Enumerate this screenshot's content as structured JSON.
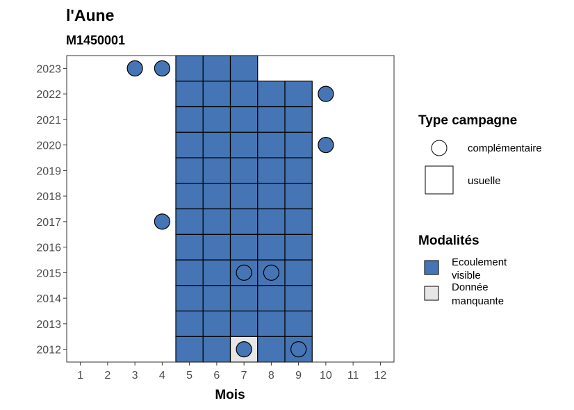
{
  "chart_data": {
    "type": "heatmap",
    "title": "l'Aune",
    "subtitle": "M1450001",
    "xlabel": "Mois",
    "ylabel": "",
    "x_ticks": [
      1,
      2,
      3,
      4,
      5,
      6,
      7,
      8,
      9,
      10,
      11,
      12
    ],
    "y_ticks": [
      2012,
      2013,
      2014,
      2015,
      2016,
      2017,
      2018,
      2019,
      2020,
      2021,
      2022,
      2023
    ],
    "xlim": [
      0.5,
      12.5
    ],
    "ylim": [
      2011.5,
      2023.5
    ],
    "grid": false,
    "colors": {
      "Ecoulement visible": "#4575b4",
      "Donnée manquante": "#e6e6e6"
    },
    "legends": {
      "type_campagne": {
        "title": "Type campagne",
        "items": [
          {
            "label": "complémentaire",
            "shape": "circle"
          },
          {
            "label": "usuelle",
            "shape": "square"
          }
        ]
      },
      "modalites": {
        "title": "Modalités",
        "items": [
          {
            "label_lines": [
              "Ecoulement",
              "visible"
            ],
            "value": "Ecoulement visible"
          },
          {
            "label_lines": [
              "Donnée",
              "manquante"
            ],
            "value": "Donnée manquante"
          }
        ]
      }
    },
    "usuelle": [
      {
        "year": 2012,
        "months": [
          5,
          6,
          7,
          8,
          9
        ],
        "modalites": [
          "Ecoulement visible",
          "Ecoulement visible",
          "Donnée manquante",
          "Ecoulement visible",
          "Ecoulement visible"
        ]
      },
      {
        "year": 2013,
        "months": [
          5,
          6,
          7,
          8,
          9
        ],
        "modalites": [
          "Ecoulement visible",
          "Ecoulement visible",
          "Ecoulement visible",
          "Ecoulement visible",
          "Ecoulement visible"
        ]
      },
      {
        "year": 2014,
        "months": [
          5,
          6,
          7,
          8,
          9
        ],
        "modalites": [
          "Ecoulement visible",
          "Ecoulement visible",
          "Ecoulement visible",
          "Ecoulement visible",
          "Ecoulement visible"
        ]
      },
      {
        "year": 2015,
        "months": [
          5,
          6,
          7,
          8,
          9
        ],
        "modalites": [
          "Ecoulement visible",
          "Ecoulement visible",
          "Ecoulement visible",
          "Ecoulement visible",
          "Ecoulement visible"
        ]
      },
      {
        "year": 2016,
        "months": [
          5,
          6,
          7,
          8,
          9
        ],
        "modalites": [
          "Ecoulement visible",
          "Ecoulement visible",
          "Ecoulement visible",
          "Ecoulement visible",
          "Ecoulement visible"
        ]
      },
      {
        "year": 2017,
        "months": [
          5,
          6,
          7,
          8,
          9
        ],
        "modalites": [
          "Ecoulement visible",
          "Ecoulement visible",
          "Ecoulement visible",
          "Ecoulement visible",
          "Ecoulement visible"
        ]
      },
      {
        "year": 2018,
        "months": [
          5,
          6,
          7,
          8,
          9
        ],
        "modalites": [
          "Ecoulement visible",
          "Ecoulement visible",
          "Ecoulement visible",
          "Ecoulement visible",
          "Ecoulement visible"
        ]
      },
      {
        "year": 2019,
        "months": [
          5,
          6,
          7,
          8,
          9
        ],
        "modalites": [
          "Ecoulement visible",
          "Ecoulement visible",
          "Ecoulement visible",
          "Ecoulement visible",
          "Ecoulement visible"
        ]
      },
      {
        "year": 2020,
        "months": [
          5,
          6,
          7,
          8,
          9
        ],
        "modalites": [
          "Ecoulement visible",
          "Ecoulement visible",
          "Ecoulement visible",
          "Ecoulement visible",
          "Ecoulement visible"
        ]
      },
      {
        "year": 2021,
        "months": [
          5,
          6,
          7,
          8,
          9
        ],
        "modalites": [
          "Ecoulement visible",
          "Ecoulement visible",
          "Ecoulement visible",
          "Ecoulement visible",
          "Ecoulement visible"
        ]
      },
      {
        "year": 2022,
        "months": [
          5,
          6,
          7,
          8,
          9
        ],
        "modalites": [
          "Ecoulement visible",
          "Ecoulement visible",
          "Ecoulement visible",
          "Ecoulement visible",
          "Ecoulement visible"
        ]
      },
      {
        "year": 2023,
        "months": [
          5,
          6,
          7
        ],
        "modalites": [
          "Ecoulement visible",
          "Ecoulement visible",
          "Ecoulement visible"
        ]
      }
    ],
    "complementaire": [
      {
        "year": 2023,
        "month": 3,
        "modalite": "Ecoulement visible"
      },
      {
        "year": 2023,
        "month": 4,
        "modalite": "Ecoulement visible"
      },
      {
        "year": 2022,
        "month": 10,
        "modalite": "Ecoulement visible"
      },
      {
        "year": 2020,
        "month": 10,
        "modalite": "Ecoulement visible"
      },
      {
        "year": 2017,
        "month": 4,
        "modalite": "Ecoulement visible"
      },
      {
        "year": 2015,
        "month": 7,
        "modalite": "Ecoulement visible"
      },
      {
        "year": 2015,
        "month": 8,
        "modalite": "Ecoulement visible"
      },
      {
        "year": 2012,
        "month": 7,
        "modalite": "Ecoulement visible"
      },
      {
        "year": 2012,
        "month": 9,
        "modalite": "Ecoulement visible"
      }
    ]
  }
}
